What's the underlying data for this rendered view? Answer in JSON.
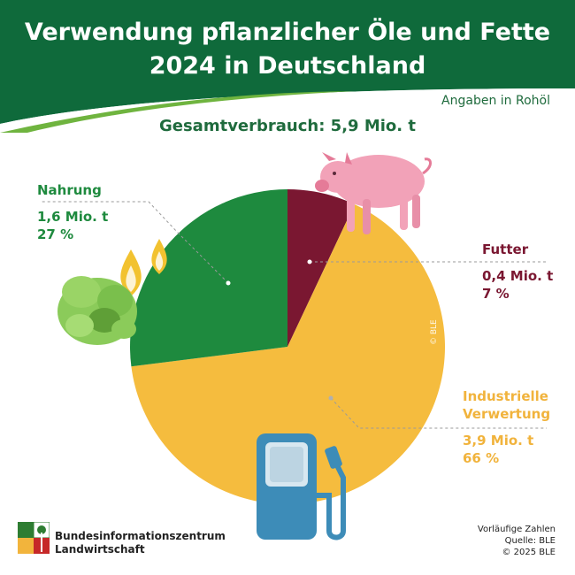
{
  "header": {
    "title_line1": "Verwendung pflanzlicher Öle und Fette",
    "title_line2": "2024 in Deutschland",
    "unit_note": "Angaben in Rohöl",
    "total_label": "Gesamtverbrauch: 5,9 Mio. t"
  },
  "colors": {
    "header_green": "#0f6a3b",
    "nahrung": "#1e8a3e",
    "futter": "#7a1731",
    "industrie": "#f5bc3e"
  },
  "chart_data": {
    "type": "pie",
    "title": "Verwendung pflanzlicher Öle und Fette 2024 in Deutschland",
    "subtitle": "Gesamtverbrauch: 5,9 Mio. t",
    "unit": "Angaben in Rohöl",
    "series": [
      {
        "slices": [
          {
            "label": "Futter",
            "value": 0.4,
            "value_text": "0,4 Mio. t",
            "percent": 7,
            "percent_text": "7 %",
            "color": "#7a1731"
          },
          {
            "label": "Industrielle Verwertung",
            "value": 3.9,
            "value_text": "3,9 Mio. t",
            "percent": 66,
            "percent_text": "66 %",
            "color": "#f5bc3e"
          },
          {
            "label": "Nahrung",
            "value": 1.6,
            "value_text": "1,6 Mio. t",
            "percent": 27,
            "percent_text": "27 %",
            "color": "#1e8a3e"
          }
        ]
      }
    ]
  },
  "labels": {
    "nahrung": {
      "name": "Nahrung",
      "amount": "1,6 Mio. t",
      "share": "27 %"
    },
    "futter": {
      "name": "Futter",
      "amount": "0,4 Mio. t",
      "share": "7 %"
    },
    "industrie": {
      "name_line1": "Industrielle",
      "name_line2": "Verwertung",
      "amount": "3,9 Mio. t",
      "share": "66 %"
    }
  },
  "icons": [
    "pig-icon",
    "oil-drops-icon",
    "lettuce-icon",
    "fuel-pump-icon",
    "ble-logo-icon"
  ],
  "watermark": "© BLE",
  "footer": {
    "org_line1": "Bundesinformationszentrum",
    "org_line2": "Landwirtschaft",
    "note1": "Vorläufige Zahlen",
    "note2": "Quelle: BLE",
    "note3": "© 2025 BLE"
  }
}
